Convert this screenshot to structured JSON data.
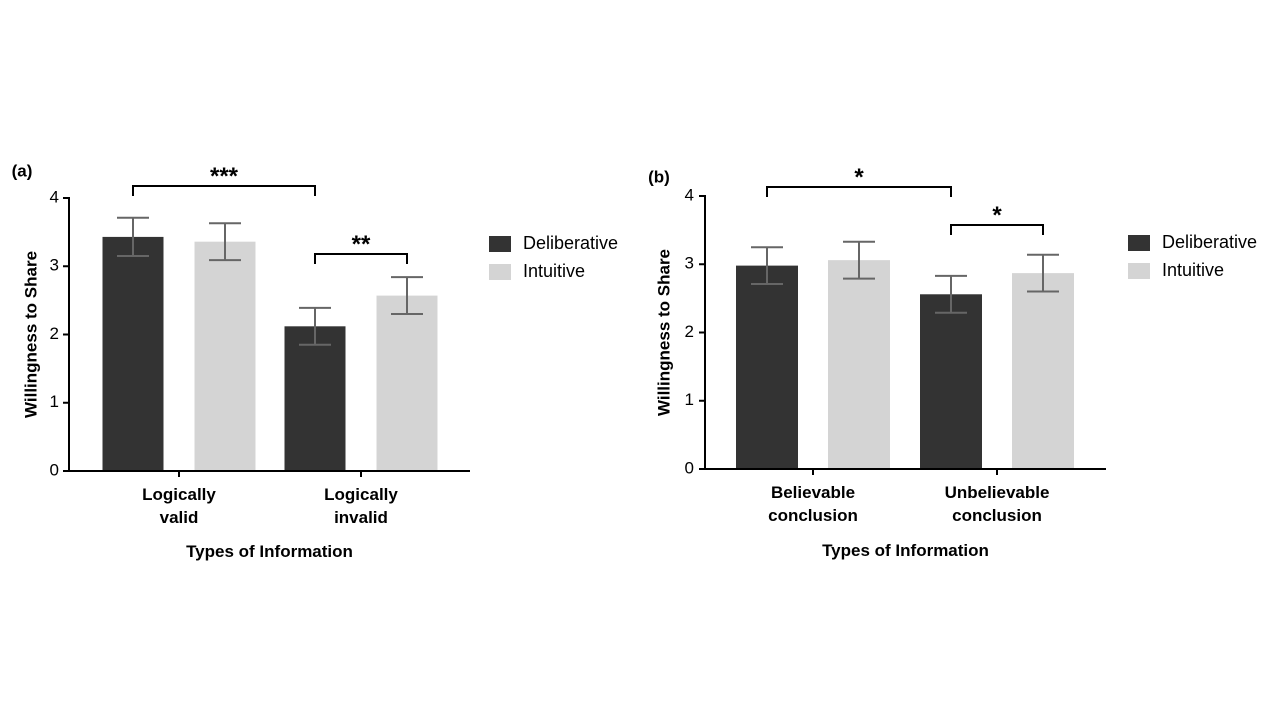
{
  "chart_data": [
    {
      "type": "bar",
      "panel_label": "(a)",
      "categories": [
        [
          "Logically",
          "valid"
        ],
        [
          "Logically",
          "invalid"
        ]
      ],
      "series": [
        {
          "name": "Deliberative",
          "color": "#333333",
          "values": [
            3.43,
            2.12
          ],
          "error": [
            0.28,
            0.27
          ]
        },
        {
          "name": "Intuitive",
          "color": "#d4d4d4",
          "values": [
            3.36,
            2.57
          ],
          "error": [
            0.27,
            0.27
          ]
        }
      ],
      "xlabel": "Types of Information",
      "ylabel": "Willingness to Share",
      "ylim": [
        0,
        4
      ],
      "yticks": [
        "0",
        "1",
        "2",
        "3",
        "4"
      ],
      "legend": "right",
      "significance": [
        {
          "from": [
            0,
            0
          ],
          "to": [
            1,
            0
          ],
          "label": "***",
          "level": 1
        },
        {
          "from": [
            1,
            0
          ],
          "to": [
            1,
            1
          ],
          "label": "**",
          "level": 0
        }
      ]
    },
    {
      "type": "bar",
      "panel_label": "(b)",
      "categories": [
        [
          "Believable",
          "conclusion"
        ],
        [
          "Unbelievable",
          "conclusion"
        ]
      ],
      "series": [
        {
          "name": "Deliberative",
          "color": "#333333",
          "values": [
            2.98,
            2.56
          ],
          "error": [
            0.27,
            0.27
          ]
        },
        {
          "name": "Intuitive",
          "color": "#d4d4d4",
          "values": [
            3.06,
            2.87
          ],
          "error": [
            0.27,
            0.27
          ]
        }
      ],
      "xlabel": "Types of Information",
      "ylabel": "Willingness to Share",
      "ylim": [
        0,
        4
      ],
      "yticks": [
        "0",
        "1",
        "2",
        "3",
        "4"
      ],
      "legend": "right",
      "significance": [
        {
          "from": [
            0,
            0
          ],
          "to": [
            1,
            0
          ],
          "label": "*",
          "level": 1
        },
        {
          "from": [
            1,
            0
          ],
          "to": [
            1,
            1
          ],
          "label": "*",
          "level": 0
        }
      ]
    }
  ]
}
